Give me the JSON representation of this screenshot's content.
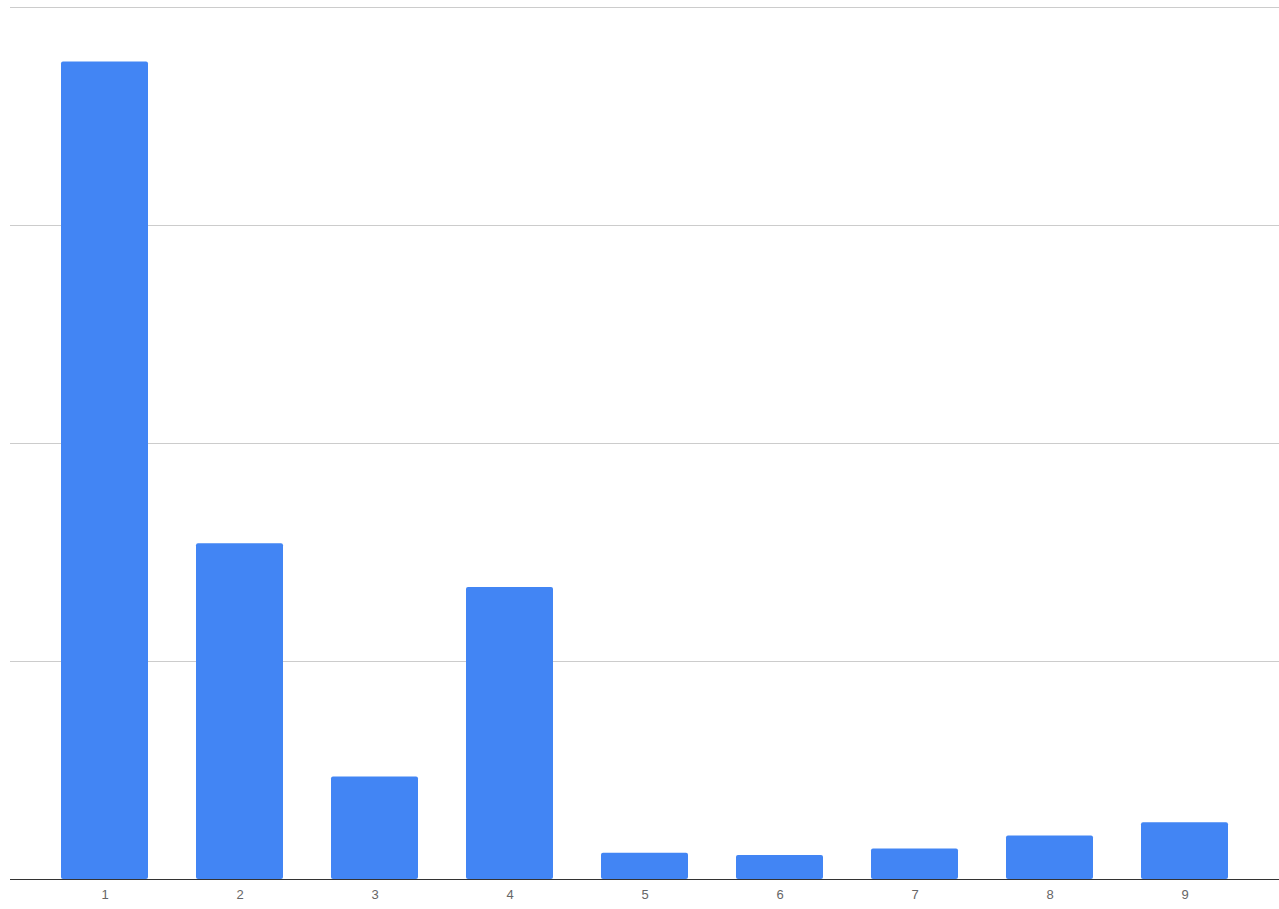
{
  "chart_data": {
    "type": "bar",
    "categories": [
      "1",
      "2",
      "3",
      "4",
      "5",
      "6",
      "7",
      "8",
      "9"
    ],
    "values": [
      3.75,
      1.54,
      0.47,
      1.34,
      0.12,
      0.11,
      0.14,
      0.2,
      0.26
    ],
    "color": "#4285f4",
    "ylim": [
      0,
      4
    ],
    "yticks": [
      0,
      1,
      2,
      3,
      4
    ],
    "grid": true,
    "tick_labels": "x"
  }
}
